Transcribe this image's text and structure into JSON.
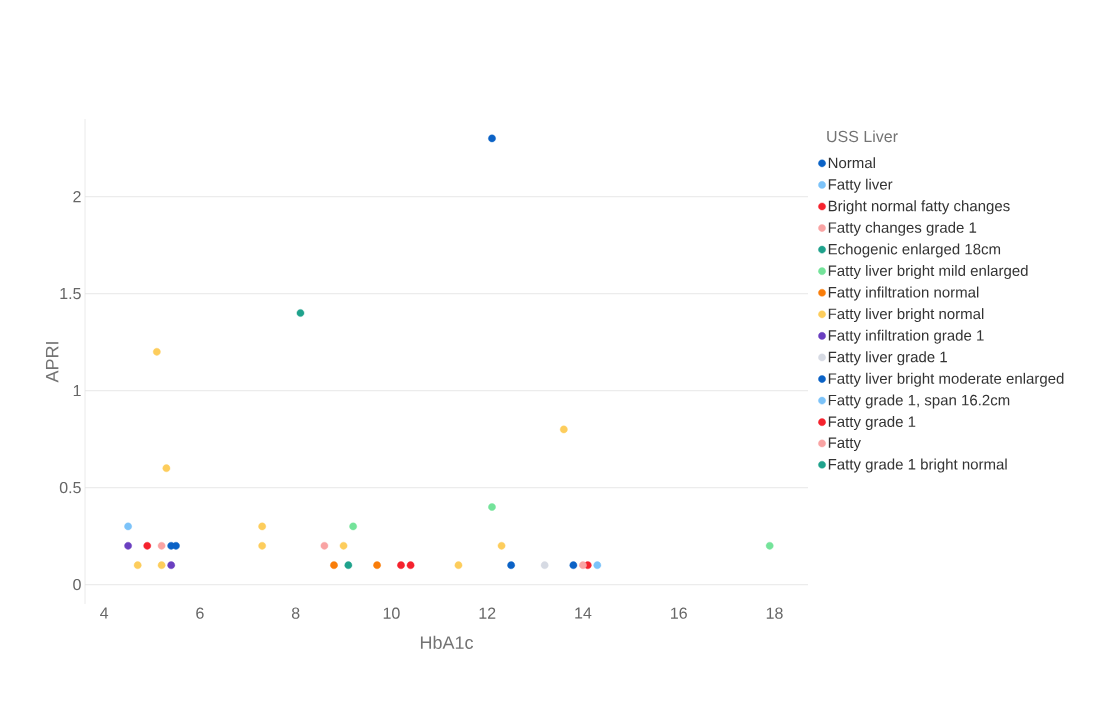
{
  "chart_data": {
    "type": "scatter",
    "xlabel": "HbA1c",
    "ylabel": "APRI",
    "legend_title": "USS Liver",
    "xlim": [
      3.6,
      18.7
    ],
    "ylim": [
      -0.1,
      2.4
    ],
    "xticks": [
      4,
      6,
      8,
      10,
      12,
      14,
      16,
      18
    ],
    "yticks": [
      0,
      0.5,
      1,
      1.5,
      2
    ],
    "grid": "y",
    "legend": "right",
    "marker": "circle",
    "series": [
      {
        "name": "Normal",
        "color": "#0b62c6",
        "x": [
          12.1,
          5.4,
          5.5
        ],
        "values": [
          2.3,
          0.2,
          0.2
        ]
      },
      {
        "name": "Fatty liver",
        "color": "#7cc3f9",
        "x": [
          4.5
        ],
        "values": [
          0.3
        ]
      },
      {
        "name": "Bright normal fatty changes",
        "color": "#f5222d",
        "x": [
          4.9,
          10.2,
          10.4
        ],
        "values": [
          0.2,
          0.1,
          0.1
        ]
      },
      {
        "name": "Fatty changes grade 1",
        "color": "#f9a3a3",
        "x": [
          5.2,
          8.6
        ],
        "values": [
          0.2,
          0.2
        ]
      },
      {
        "name": "Echogenic enlarged 18cm",
        "color": "#1fa28c",
        "x": [
          8.1
        ],
        "values": [
          1.4
        ]
      },
      {
        "name": "Fatty liver bright mild enlarged",
        "color": "#74e39a",
        "x": [
          9.2,
          12.1,
          17.9
        ],
        "values": [
          0.3,
          0.4,
          0.2
        ]
      },
      {
        "name": "Fatty infiltration normal",
        "color": "#f97d0a",
        "x": [
          8.8,
          9.7
        ],
        "values": [
          0.1,
          0.1
        ]
      },
      {
        "name": "Fatty liver bright normal",
        "color": "#fdcd5c",
        "x": [
          5.1,
          5.3,
          13.6,
          7.3,
          7.3,
          9.0,
          12.3,
          4.7,
          5.2,
          11.4
        ],
        "values": [
          1.2,
          0.6,
          0.8,
          0.3,
          0.2,
          0.2,
          0.2,
          0.1,
          0.1,
          0.1
        ]
      },
      {
        "name": "Fatty infiltration grade 1",
        "color": "#6a3fc0",
        "x": [
          4.5,
          5.4
        ],
        "values": [
          0.2,
          0.1
        ]
      },
      {
        "name": "Fatty liver grade 1",
        "color": "#d6dae3",
        "x": [
          13.2
        ],
        "values": [
          0.1
        ]
      },
      {
        "name": "Fatty liver bright moderate enlarged",
        "color": "#0b62c6",
        "x": [
          12.5,
          13.8
        ],
        "values": [
          0.1,
          0.1
        ]
      },
      {
        "name": "Fatty grade 1, span 16.2cm",
        "color": "#7cc3f9",
        "x": [
          14.3
        ],
        "values": [
          0.1
        ]
      },
      {
        "name": "Fatty grade 1",
        "color": "#f5222d",
        "x": [
          14.1
        ],
        "values": [
          0.1
        ]
      },
      {
        "name": "Fatty",
        "color": "#f9a3a3",
        "x": [
          14.0
        ],
        "values": [
          0.1
        ]
      },
      {
        "name": "Fatty grade 1 bright normal",
        "color": "#1fa28c",
        "x": [
          9.1
        ],
        "values": [
          0.1
        ]
      }
    ]
  }
}
